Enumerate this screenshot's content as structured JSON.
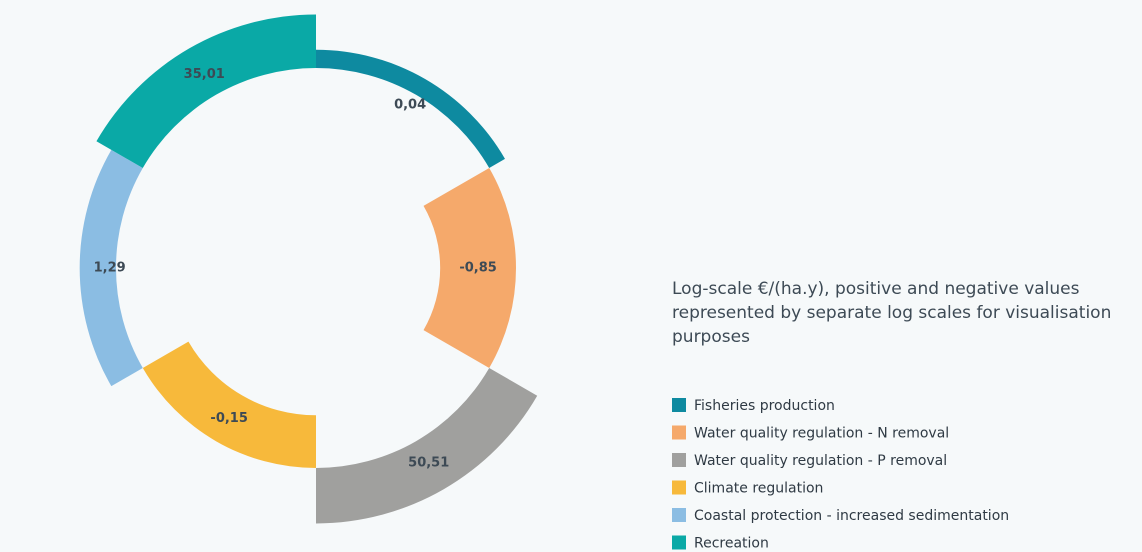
{
  "chart_data": {
    "type": "radial_bar",
    "title": "Log-scale €/(ha.y), positive and negative values represented by separate log scales for visualisation purposes",
    "log_scale": true,
    "categories": [
      "Fisheries production",
      "Water quality regulation - N removal",
      "Water quality regulation - P removal",
      "Climate regulation",
      "Coastal protection - increased sedimentation",
      "Recreation"
    ],
    "values": [
      0.04,
      -0.85,
      50.51,
      -0.15,
      1.29,
      35.01
    ],
    "value_labels": [
      "0,04",
      "-0,85",
      "50,51",
      "-0,15",
      "1,29",
      "35,01"
    ],
    "colors": [
      "#0e8aa0",
      "#f5a96b",
      "#a0a09e",
      "#f7b93b",
      "#8bbde3",
      "#0aa9a6"
    ]
  }
}
